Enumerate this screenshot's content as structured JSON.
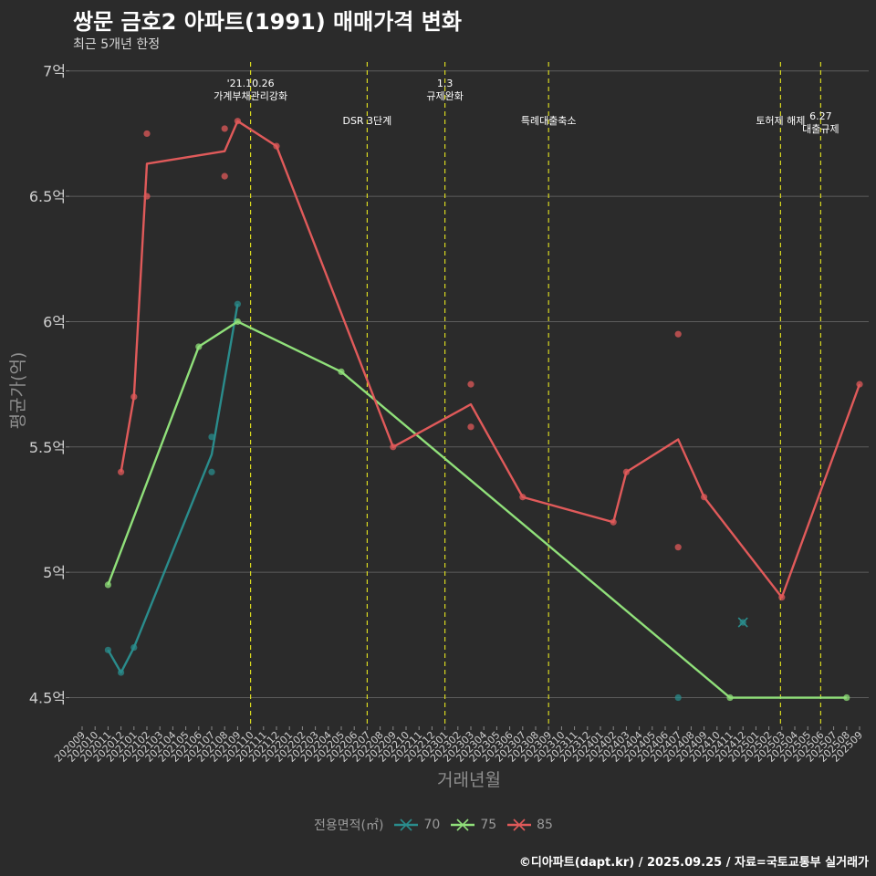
{
  "title": "쌍문 금호2 아파트(1991) 매매가격 변화",
  "subtitle": "최근 5개년 한정",
  "caption": "©디아파트(dapt.kr) / 2025.09.25 / 자료=국토교통부 실거래가",
  "legend": {
    "title": "전용면적(㎡)"
  },
  "chart_data": {
    "type": "line",
    "title": "쌍문 금호2 아파트(1991) 매매가격 변화",
    "xlabel": "거래년월",
    "ylabel": "평균가(억)",
    "ylim": [
      4.4,
      7.05
    ],
    "yticks": [
      4.5,
      5,
      5.5,
      6,
      6.5,
      7
    ],
    "ytick_labels": [
      "4.5억",
      "5억",
      "5.5억",
      "6억",
      "6.5억",
      "7억"
    ],
    "categories": [
      "202009",
      "202010",
      "202011",
      "202012",
      "202101",
      "202102",
      "202103",
      "202104",
      "202105",
      "202106",
      "202107",
      "202108",
      "202109",
      "202110",
      "202111",
      "202112",
      "202201",
      "202202",
      "202203",
      "202204",
      "202205",
      "202206",
      "202207",
      "202208",
      "202209",
      "202210",
      "202211",
      "202212",
      "202301",
      "202302",
      "202303",
      "202304",
      "202305",
      "202306",
      "202307",
      "202308",
      "202309",
      "202310",
      "202311",
      "202312",
      "202401",
      "202402",
      "202403",
      "202404",
      "202405",
      "202406",
      "202407",
      "202408",
      "202409",
      "202410",
      "202411",
      "202412",
      "202501",
      "202502",
      "202503",
      "202504",
      "202505",
      "202506",
      "202507",
      "202508",
      "202509"
    ],
    "series": [
      {
        "name": "70",
        "color": "#2a8c8c",
        "line": [
          {
            "x": "202011",
            "y": 4.69
          },
          {
            "x": "202012",
            "y": 4.6
          },
          {
            "x": "202101",
            "y": 4.7
          },
          {
            "x": "202107",
            "y": 5.47
          },
          {
            "x": "202109",
            "y": 6.07
          }
        ],
        "points": [
          {
            "x": "202011",
            "y": 4.69
          },
          {
            "x": "202012",
            "y": 4.6
          },
          {
            "x": "202101",
            "y": 4.7
          },
          {
            "x": "202107",
            "y": 5.54
          },
          {
            "x": "202107",
            "y": 5.4
          },
          {
            "x": "202109",
            "y": 6.07
          },
          {
            "x": "202407",
            "y": 4.5
          },
          {
            "x": "202412",
            "y": 4.8
          }
        ]
      },
      {
        "name": "75",
        "color": "#90e07a",
        "line": [
          {
            "x": "202011",
            "y": 4.95
          },
          {
            "x": "202106",
            "y": 5.9
          },
          {
            "x": "202109",
            "y": 6.0
          },
          {
            "x": "202205",
            "y": 5.8
          },
          {
            "x": "202411",
            "y": 4.5
          },
          {
            "x": "202508",
            "y": 4.5
          }
        ],
        "points": [
          {
            "x": "202011",
            "y": 4.95
          },
          {
            "x": "202106",
            "y": 5.9
          },
          {
            "x": "202109",
            "y": 6.0
          },
          {
            "x": "202205",
            "y": 5.8
          },
          {
            "x": "202411",
            "y": 4.5
          },
          {
            "x": "202508",
            "y": 4.5
          }
        ]
      },
      {
        "name": "85",
        "color": "#e05a5a",
        "line": [
          {
            "x": "202012",
            "y": 5.4
          },
          {
            "x": "202101",
            "y": 5.7
          },
          {
            "x": "202102",
            "y": 6.63
          },
          {
            "x": "202108",
            "y": 6.68
          },
          {
            "x": "202109",
            "y": 6.8
          },
          {
            "x": "202112",
            "y": 6.7
          },
          {
            "x": "202209",
            "y": 5.5
          },
          {
            "x": "202303",
            "y": 5.67
          },
          {
            "x": "202307",
            "y": 5.3
          },
          {
            "x": "202402",
            "y": 5.2
          },
          {
            "x": "202403",
            "y": 5.4
          },
          {
            "x": "202407",
            "y": 5.53
          },
          {
            "x": "202409",
            "y": 5.3
          },
          {
            "x": "202503",
            "y": 4.9
          },
          {
            "x": "202509",
            "y": 5.75
          }
        ],
        "points": [
          {
            "x": "202012",
            "y": 5.4
          },
          {
            "x": "202101",
            "y": 5.7
          },
          {
            "x": "202102",
            "y": 6.75
          },
          {
            "x": "202102",
            "y": 6.5
          },
          {
            "x": "202108",
            "y": 6.77
          },
          {
            "x": "202108",
            "y": 6.58
          },
          {
            "x": "202109",
            "y": 6.8
          },
          {
            "x": "202112",
            "y": 6.7
          },
          {
            "x": "202209",
            "y": 5.5
          },
          {
            "x": "202303",
            "y": 5.75
          },
          {
            "x": "202303",
            "y": 5.58
          },
          {
            "x": "202307",
            "y": 5.3
          },
          {
            "x": "202402",
            "y": 5.2
          },
          {
            "x": "202403",
            "y": 5.4
          },
          {
            "x": "202407",
            "y": 5.95
          },
          {
            "x": "202407",
            "y": 5.1
          },
          {
            "x": "202409",
            "y": 5.3
          },
          {
            "x": "202503",
            "y": 4.9
          },
          {
            "x": "202509",
            "y": 5.75
          }
        ]
      }
    ],
    "events": [
      {
        "x": 13.0,
        "lines": [
          "'21.10.26",
          "가계부채관리강화"
        ],
        "level": 0
      },
      {
        "x": 22.0,
        "lines": [
          "DSR 3단계"
        ],
        "level": 2
      },
      {
        "x": 28.0,
        "lines": [
          "1.3",
          "규제완화"
        ],
        "level": 0
      },
      {
        "x": 36.0,
        "lines": [
          "특례대출축소"
        ],
        "level": 2
      },
      {
        "x": 53.9,
        "lines": [
          "토허제 해제"
        ],
        "level": 1
      },
      {
        "x": 57.0,
        "lines": [
          "6.27",
          "대출규제"
        ],
        "level": 3
      }
    ]
  }
}
